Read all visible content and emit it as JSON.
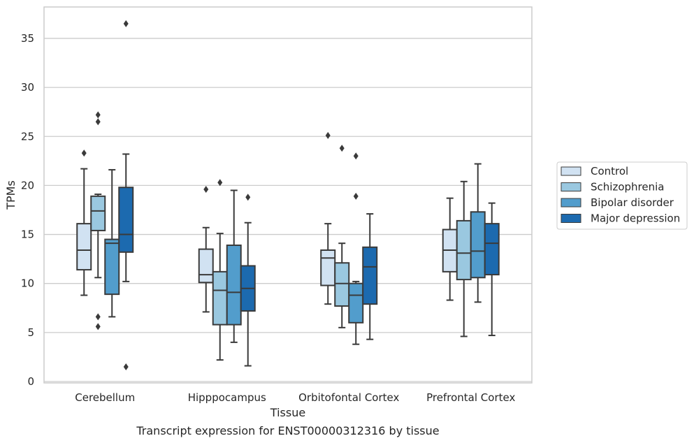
{
  "caption": "Transcript expression for ENST00000312316 by tissue",
  "chart_data": {
    "type": "boxplot",
    "xlabel": "Tissue",
    "ylabel": "TPMs",
    "ylim": [
      0,
      38.2
    ],
    "yticks": [
      0,
      5,
      10,
      15,
      20,
      25,
      30,
      35
    ],
    "grid": "horizontal",
    "legend_placement": "right",
    "categories": [
      "Cerebellum",
      "Hipppocampus",
      "Orbitofontal Cortex",
      "Prefrontal Cortex"
    ],
    "series": [
      {
        "name": "Control",
        "color": "#d1e2f2",
        "boxes": [
          {
            "whislo": 8.8,
            "q1": 11.4,
            "med": 13.4,
            "q3": 16.1,
            "whishi": 21.7,
            "fliers": [
              23.3
            ]
          },
          {
            "whislo": 7.1,
            "q1": 10.1,
            "med": 10.9,
            "q3": 13.5,
            "whishi": 15.7,
            "fliers": [
              19.6
            ]
          },
          {
            "whislo": 7.9,
            "q1": 9.8,
            "med": 12.6,
            "q3": 13.4,
            "whishi": 16.1,
            "fliers": [
              25.1
            ]
          },
          {
            "whislo": 8.3,
            "q1": 11.2,
            "med": 13.4,
            "q3": 15.5,
            "whishi": 18.7,
            "fliers": []
          }
        ]
      },
      {
        "name": "Schizophrenia",
        "color": "#9ac8e0",
        "boxes": [
          {
            "whislo": 10.6,
            "q1": 15.4,
            "med": 17.4,
            "q3": 18.9,
            "whishi": 19.1,
            "fliers": [
              5.6,
              6.6,
              26.5,
              27.2
            ]
          },
          {
            "whislo": 2.2,
            "q1": 5.8,
            "med": 9.3,
            "q3": 11.2,
            "whishi": 15.1,
            "fliers": [
              20.3
            ]
          },
          {
            "whislo": 5.5,
            "q1": 7.7,
            "med": 10.0,
            "q3": 12.1,
            "whishi": 14.1,
            "fliers": [
              23.8
            ]
          },
          {
            "whislo": 4.6,
            "q1": 10.4,
            "med": 13.1,
            "q3": 16.4,
            "whishi": 20.4,
            "fliers": []
          }
        ]
      },
      {
        "name": "Bipolar disorder",
        "color": "#529dcc",
        "boxes": [
          {
            "whislo": 6.6,
            "q1": 8.9,
            "med": 14.1,
            "q3": 14.5,
            "whishi": 21.6,
            "fliers": []
          },
          {
            "whislo": 4.0,
            "q1": 5.8,
            "med": 9.1,
            "q3": 13.9,
            "whishi": 19.5,
            "fliers": []
          },
          {
            "whislo": 3.8,
            "q1": 6.0,
            "med": 8.8,
            "q3": 10.0,
            "whishi": 10.2,
            "fliers": [
              18.9,
              23.0
            ]
          },
          {
            "whislo": 8.1,
            "q1": 10.6,
            "med": 13.3,
            "q3": 17.3,
            "whishi": 22.2,
            "fliers": []
          }
        ]
      },
      {
        "name": "Major depression",
        "color": "#1c6aaf",
        "boxes": [
          {
            "whislo": 10.2,
            "q1": 13.2,
            "med": 15.0,
            "q3": 19.8,
            "whishi": 23.2,
            "fliers": [
              1.5,
              36.5
            ]
          },
          {
            "whislo": 1.6,
            "q1": 7.2,
            "med": 9.5,
            "q3": 11.8,
            "whishi": 16.2,
            "fliers": [
              18.8
            ]
          },
          {
            "whislo": 4.3,
            "q1": 7.9,
            "med": 11.7,
            "q3": 13.7,
            "whishi": 17.1,
            "fliers": []
          },
          {
            "whislo": 4.7,
            "q1": 10.9,
            "med": 14.1,
            "q3": 16.1,
            "whishi": 18.2,
            "fliers": []
          }
        ]
      }
    ]
  }
}
